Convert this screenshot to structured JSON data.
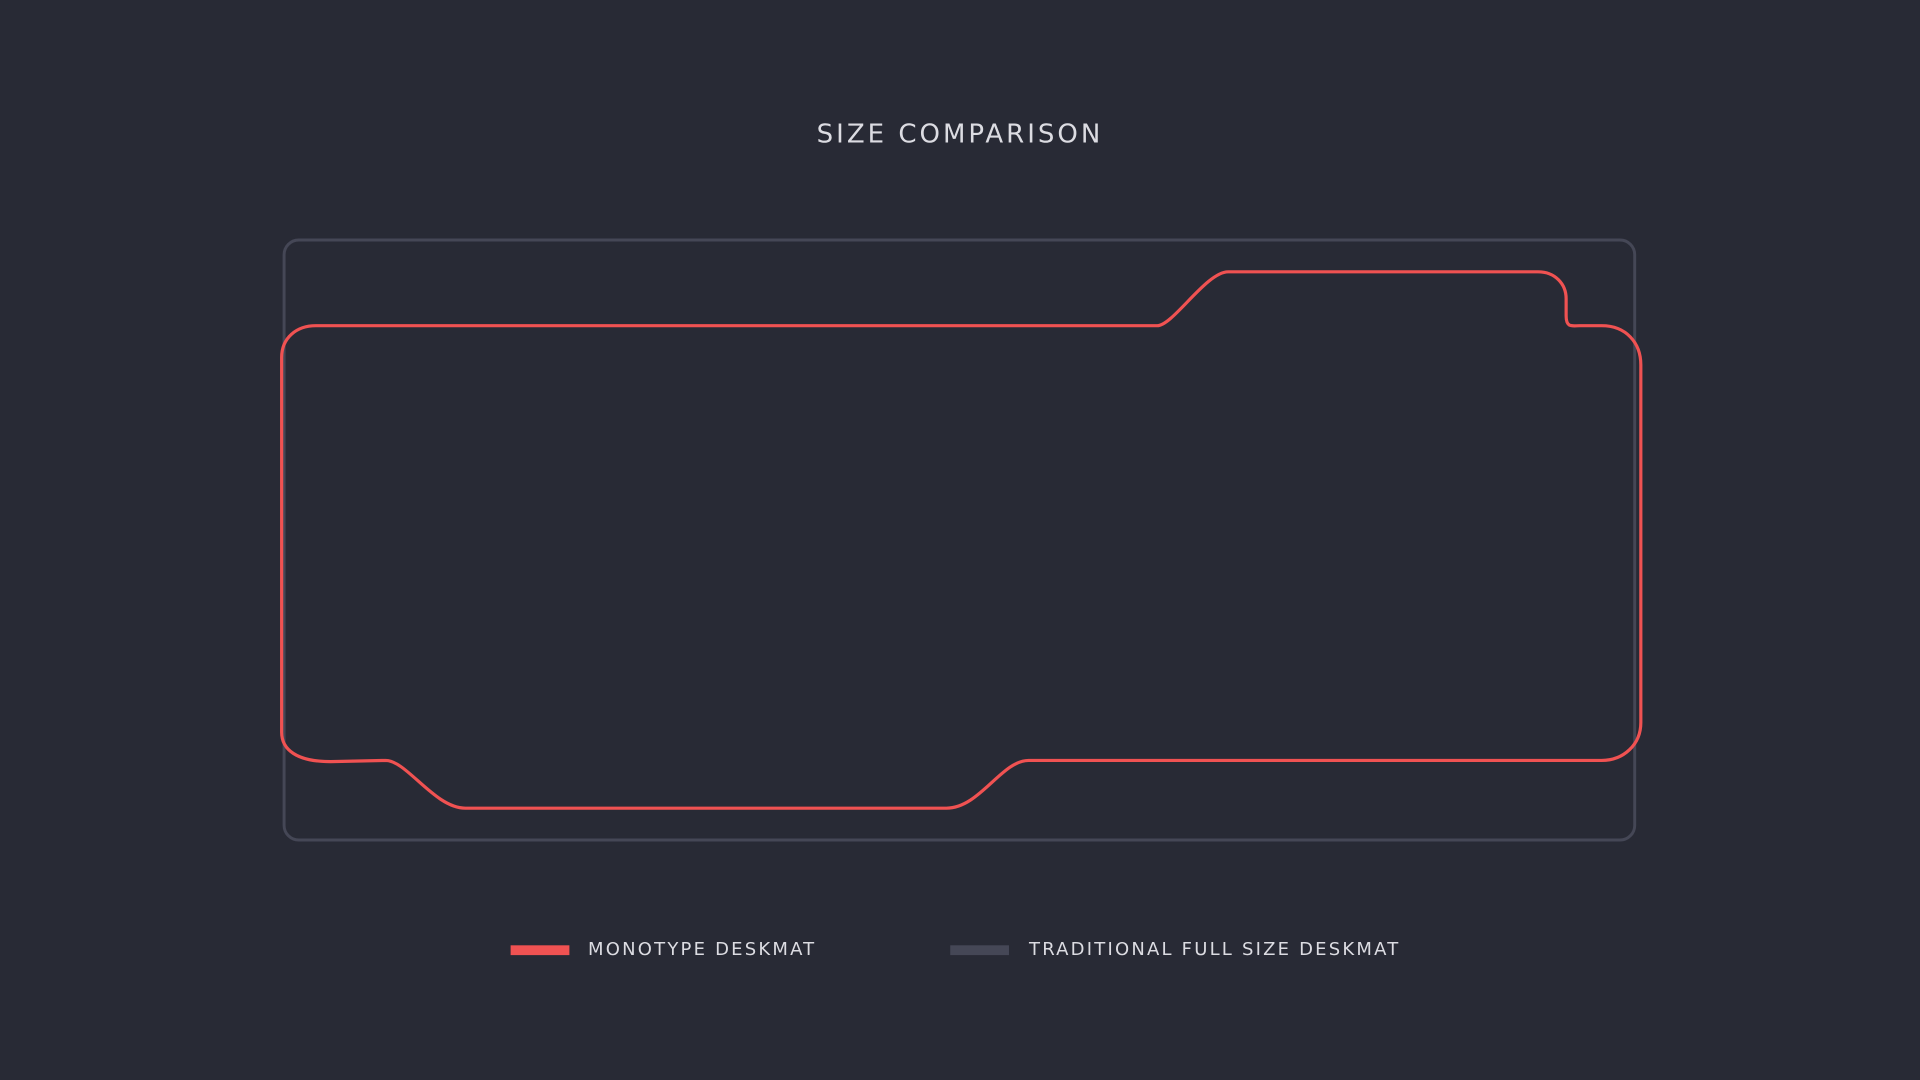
{
  "title": "SIZE COMPARISON",
  "legend": [
    {
      "label": "MONOTYPE DESKMAT",
      "color": "#f05252"
    },
    {
      "label": "TRADITIONAL FULL SIZE DESKMAT",
      "color": "#454756"
    }
  ]
}
